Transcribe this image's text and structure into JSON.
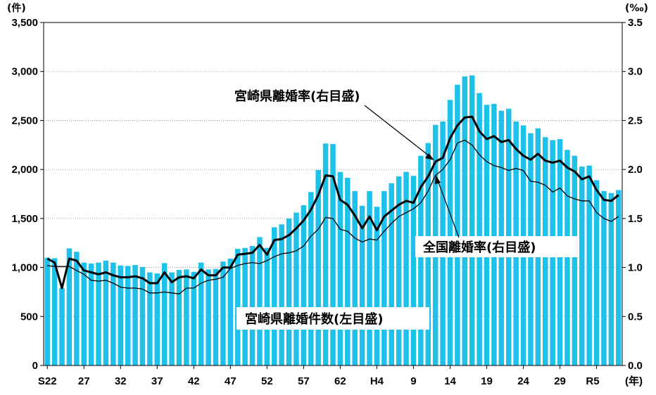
{
  "chart_data": {
    "type": "bar",
    "title": "",
    "units": {
      "left": "(件)",
      "right": "(‰)",
      "x": "(年)"
    },
    "x_tick_labels": [
      "S22",
      "27",
      "32",
      "37",
      "42",
      "47",
      "52",
      "57",
      "62",
      "H4",
      "9",
      "14",
      "19",
      "24",
      "29",
      "R5"
    ],
    "left_axis": {
      "min": 0,
      "max": 3500,
      "ticks": [
        "0",
        "500",
        "1,000",
        "1,500",
        "2,000",
        "2,500",
        "3,000",
        "3,500"
      ]
    },
    "right_axis": {
      "min": 0,
      "max": 3.5,
      "ticks": [
        "0.0",
        "0.5",
        "1.0",
        "1.5",
        "2.0",
        "2.5",
        "3.0",
        "3.5"
      ]
    },
    "grid": true,
    "annotations": {
      "miyazaki_rate": "宮崎県離婚率(右目盛)",
      "national_rate": "全国離婚率(右目盛)",
      "miyazaki_count": "宮崎県離婚件数(左目盛)"
    },
    "colors": {
      "bars": "#1ec1ea",
      "miyazaki_line": "#000000",
      "national_line": "#000000"
    },
    "series": [
      {
        "name": "宮崎県離婚件数(左目盛)",
        "kind": "bar",
        "axis": "left",
        "values": [
          1100,
          1095,
          790,
          1195,
          1160,
          1050,
          1040,
          1050,
          1070,
          1050,
          1020,
          1015,
          1025,
          1005,
          950,
          940,
          1045,
          950,
          975,
          980,
          955,
          1050,
          980,
          985,
          1060,
          1090,
          1190,
          1200,
          1220,
          1310,
          1200,
          1410,
          1440,
          1500,
          1560,
          1635,
          1770,
          1995,
          2265,
          2260,
          1975,
          1915,
          1780,
          1630,
          1780,
          1620,
          1780,
          1860,
          1930,
          1975,
          1935,
          2140,
          2270,
          2455,
          2490,
          2710,
          2865,
          2950,
          2960,
          2780,
          2660,
          2670,
          2600,
          2620,
          2490,
          2450,
          2370,
          2420,
          2330,
          2300,
          2310,
          2200,
          2140,
          2030,
          2040,
          1890,
          1780,
          1760,
          1790
        ]
      },
      {
        "name": "宮崎県離婚率(右目盛)",
        "kind": "line",
        "axis": "right",
        "values": [
          1.09,
          1.05,
          0.79,
          1.09,
          1.07,
          0.97,
          0.95,
          0.93,
          0.95,
          0.92,
          0.9,
          0.9,
          0.91,
          0.89,
          0.84,
          0.84,
          0.95,
          0.85,
          0.9,
          0.91,
          0.89,
          0.98,
          0.92,
          0.92,
          1.0,
          1.0,
          1.13,
          1.14,
          1.15,
          1.23,
          1.13,
          1.28,
          1.29,
          1.33,
          1.4,
          1.48,
          1.59,
          1.74,
          1.94,
          1.93,
          1.69,
          1.64,
          1.53,
          1.4,
          1.52,
          1.38,
          1.52,
          1.58,
          1.64,
          1.68,
          1.66,
          1.82,
          1.93,
          2.08,
          2.12,
          2.32,
          2.45,
          2.53,
          2.54,
          2.39,
          2.31,
          2.34,
          2.28,
          2.3,
          2.21,
          2.14,
          2.1,
          2.16,
          2.09,
          2.07,
          2.09,
          2.02,
          1.98,
          1.9,
          1.93,
          1.79,
          1.69,
          1.68,
          1.74
        ]
      },
      {
        "name": "全国離婚率(右目盛)",
        "kind": "line",
        "axis": "right",
        "values": [
          1.02,
          1.01,
          1.01,
          1.01,
          0.97,
          0.93,
          0.87,
          0.86,
          0.87,
          0.84,
          0.8,
          0.79,
          0.79,
          0.78,
          0.74,
          0.74,
          0.75,
          0.74,
          0.73,
          0.79,
          0.79,
          0.84,
          0.87,
          0.88,
          0.9,
          0.99,
          1.02,
          1.04,
          1.05,
          1.04,
          1.07,
          1.11,
          1.14,
          1.15,
          1.17,
          1.22,
          1.32,
          1.39,
          1.51,
          1.5,
          1.39,
          1.37,
          1.3,
          1.26,
          1.29,
          1.28,
          1.37,
          1.45,
          1.52,
          1.56,
          1.6,
          1.66,
          1.78,
          1.94,
          2.0,
          2.1,
          2.27,
          2.3,
          2.25,
          2.15,
          2.08,
          2.04,
          2.02,
          1.99,
          2.01,
          1.99,
          1.88,
          1.87,
          1.84,
          1.77,
          1.81,
          1.73,
          1.7,
          1.68,
          1.68,
          1.56,
          1.5,
          1.47,
          1.52
        ]
      }
    ]
  }
}
